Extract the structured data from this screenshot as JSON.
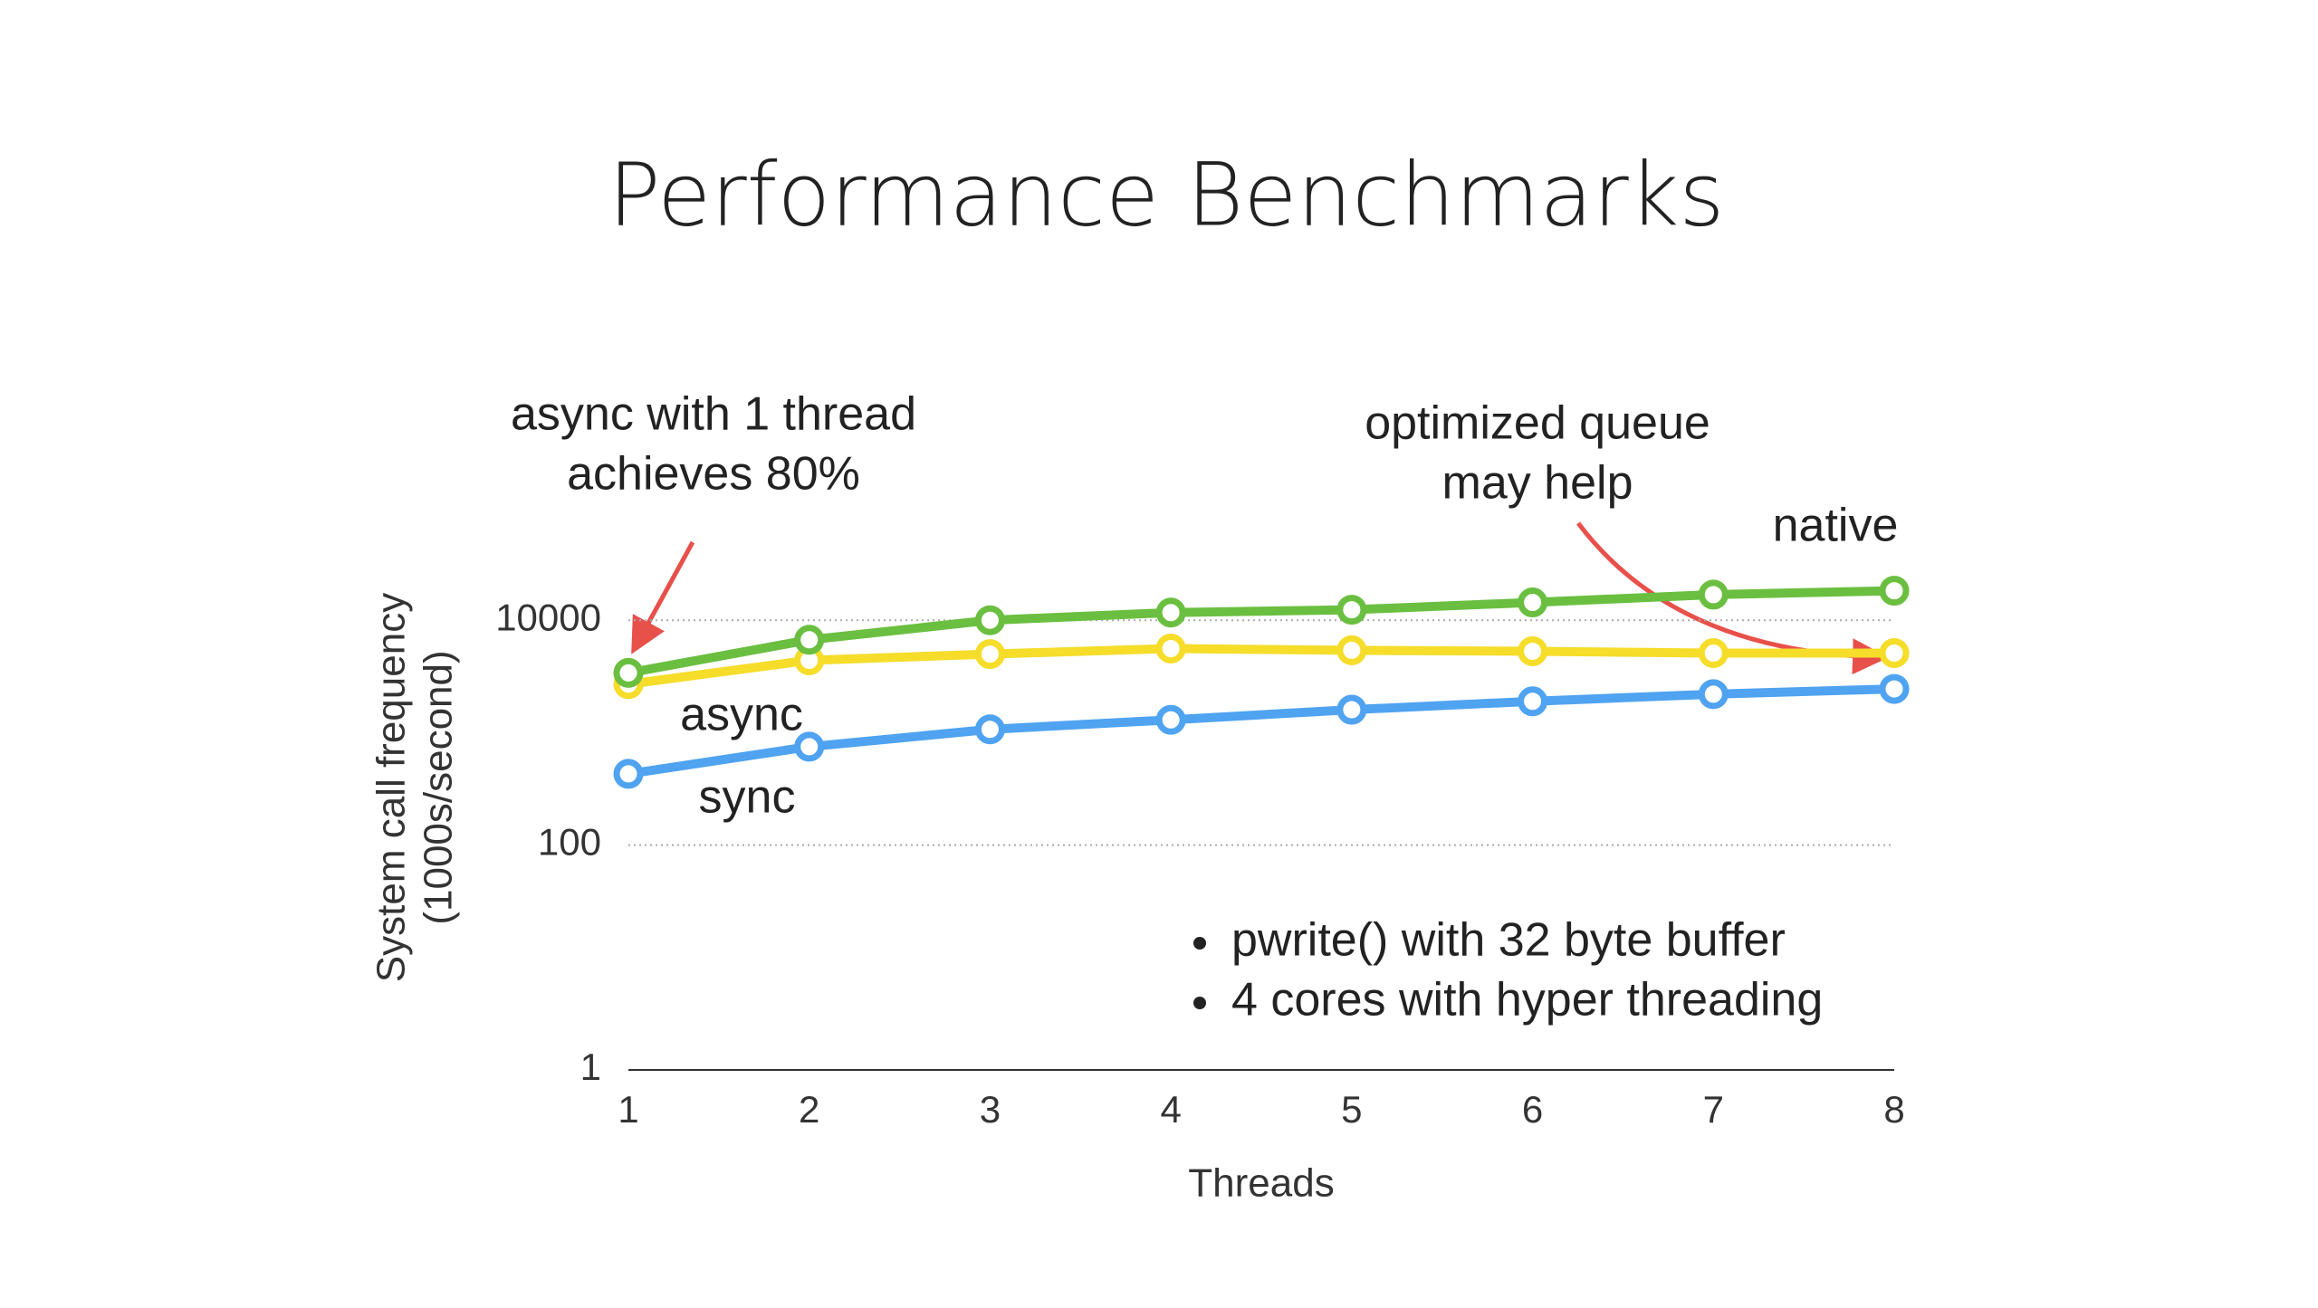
{
  "chart_data": {
    "type": "line",
    "title": "Performance Benchmarks",
    "xlabel": "Threads",
    "ylabel": [
      "System call frequency",
      "(1000s/second)"
    ],
    "x": [
      1,
      2,
      3,
      4,
      5,
      6,
      7,
      8
    ],
    "xlim": [
      1,
      8
    ],
    "xticks": [
      1,
      2,
      3,
      4,
      5,
      6,
      7,
      8
    ],
    "ylim": [
      1,
      100000
    ],
    "yticks": [
      1,
      100,
      10000
    ],
    "yscale": "log",
    "grid": true,
    "series": [
      {
        "name": "native",
        "color": "#6abf40",
        "values": [
          3400,
          6700,
          10000,
          11700,
          12400,
          14400,
          16900,
          18300
        ]
      },
      {
        "name": "async",
        "color": "#f5dd2a",
        "values": [
          2700,
          4400,
          5000,
          5600,
          5400,
          5300,
          5100,
          5100
        ]
      },
      {
        "name": "sync",
        "color": "#4fa3f0",
        "values": [
          430,
          750,
          1070,
          1300,
          1600,
          1900,
          2200,
          2450
        ]
      }
    ],
    "annotations": [
      [
        "async with 1 thread",
        "achieves 80%"
      ],
      [
        "optimized queue",
        "may help"
      ]
    ],
    "notes": [
      "pwrite() with 32 byte buffer",
      "4 cores with hyper threading"
    ]
  }
}
